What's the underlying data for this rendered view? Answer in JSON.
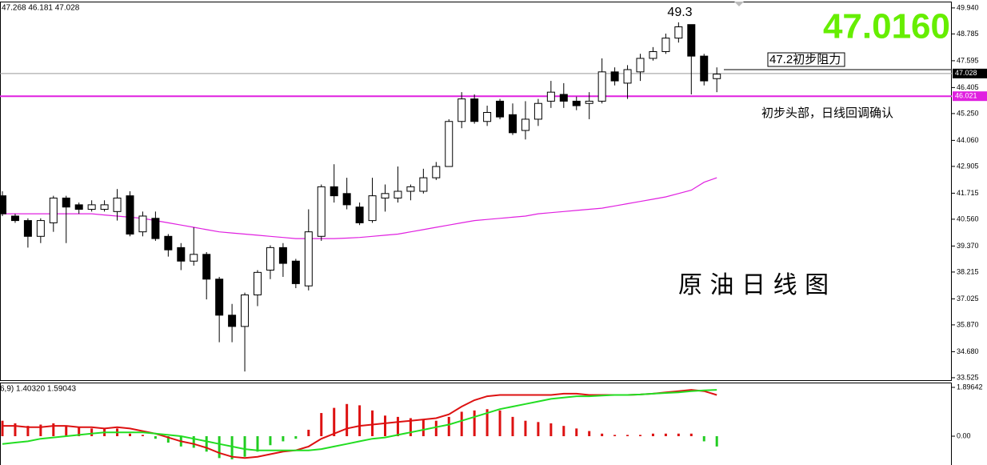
{
  "chart_data": [
    {
      "type": "candlestick",
      "title": "原 油 日 线 图",
      "header": "47.268 46.181 47.028",
      "annotations": {
        "high_label": "49.3",
        "big_price": "47.0160",
        "resistance": "47.2初步阻力",
        "note": "初步头部，日线回调确认"
      },
      "up_color": "#ffffff",
      "down_color": "#000000",
      "ma_color": "#e020e0",
      "big_price_color": "#66ee00",
      "open": [
        41.6,
        40.7,
        40.5,
        39.8,
        40.4,
        41.5,
        41.2,
        41.0,
        41.0,
        40.9,
        41.6,
        40.0,
        40.6,
        39.8,
        39.3,
        38.7,
        39.0,
        37.9,
        36.3,
        35.8,
        37.2,
        38.3,
        39.3,
        38.7,
        37.6,
        39.8,
        42.0,
        41.7,
        41.1,
        40.5,
        41.5,
        41.5,
        41.8,
        41.8,
        42.4,
        42.9,
        44.9,
        45.9,
        44.9,
        45.8,
        45.2,
        44.5,
        45.0,
        45.8,
        46.1,
        45.8,
        45.7,
        45.8,
        47.1,
        46.6,
        47.1,
        47.7,
        48.0,
        48.6,
        49.2,
        47.8,
        46.8
      ],
      "high": [
        41.8,
        40.8,
        40.6,
        40.6,
        41.6,
        41.6,
        41.3,
        41.4,
        41.4,
        41.9,
        41.8,
        40.9,
        40.9,
        39.9,
        39.5,
        40.2,
        39.1,
        38.0,
        36.8,
        37.3,
        38.3,
        39.4,
        39.5,
        38.8,
        41.0,
        42.1,
        43.0,
        42.4,
        41.3,
        42.4,
        42.1,
        42.9,
        42.1,
        42.8,
        43.1,
        45.0,
        46.2,
        46.1,
        45.6,
        45.9,
        45.7,
        45.8,
        45.9,
        46.7,
        46.6,
        46.0,
        46.2,
        47.7,
        47.3,
        47.4,
        47.9,
        48.2,
        48.8,
        49.3,
        49.2,
        47.9,
        47.3
      ],
      "low": [
        40.7,
        40.4,
        39.3,
        39.5,
        40.0,
        39.5,
        40.8,
        40.9,
        40.9,
        40.5,
        39.8,
        39.8,
        39.6,
        38.9,
        38.3,
        38.5,
        37.0,
        35.1,
        35.1,
        33.8,
        36.7,
        37.9,
        38.0,
        37.5,
        37.4,
        39.6,
        41.3,
        41.0,
        40.3,
        40.4,
        40.9,
        41.3,
        41.4,
        41.7,
        42.3,
        42.9,
        44.6,
        44.8,
        44.7,
        45.0,
        44.3,
        44.1,
        44.7,
        45.5,
        45.5,
        45.4,
        45.0,
        45.7,
        46.5,
        45.9,
        46.7,
        47.6,
        47.9,
        48.4,
        46.1,
        46.5,
        46.2
      ],
      "close": [
        40.8,
        40.5,
        39.8,
        40.5,
        41.5,
        41.1,
        41.0,
        41.2,
        41.2,
        41.5,
        39.9,
        40.7,
        39.7,
        39.2,
        38.7,
        39.0,
        37.9,
        36.3,
        35.8,
        37.2,
        38.2,
        39.3,
        38.6,
        37.7,
        40.0,
        42.0,
        41.6,
        41.2,
        40.4,
        41.6,
        41.7,
        41.8,
        42.0,
        42.4,
        42.9,
        44.9,
        45.9,
        44.9,
        45.3,
        45.1,
        44.4,
        45.0,
        45.7,
        46.2,
        45.8,
        45.6,
        45.8,
        47.1,
        46.7,
        47.2,
        47.7,
        48.0,
        48.6,
        49.1,
        47.8,
        46.7,
        47.0
      ],
      "ma": [
        40.8,
        40.8,
        40.8,
        40.8,
        40.8,
        40.8,
        40.8,
        40.8,
        40.75,
        40.7,
        40.65,
        40.6,
        40.5,
        40.4,
        40.3,
        40.2,
        40.1,
        40.0,
        39.95,
        39.9,
        39.85,
        39.8,
        39.75,
        39.7,
        39.7,
        39.7,
        39.7,
        39.72,
        39.75,
        39.8,
        39.85,
        39.9,
        40.0,
        40.1,
        40.2,
        40.3,
        40.4,
        40.5,
        40.55,
        40.6,
        40.65,
        40.7,
        40.8,
        40.85,
        40.9,
        40.95,
        41.0,
        41.05,
        41.15,
        41.25,
        41.35,
        41.45,
        41.55,
        41.7,
        41.85,
        42.2,
        42.4
      ],
      "hlines": [
        {
          "value": 47.028,
          "color": "#999999",
          "tag_color": "#000000"
        },
        {
          "value": 46.021,
          "color": "#e020e0",
          "tag_color": "#e020e0"
        }
      ],
      "resistance_value": 47.2,
      "ylim": [
        33.38,
        50.22
      ],
      "yticks": [
        {
          "value": 49.94,
          "label": "49.940"
        },
        48.785,
        47.595,
        46.405,
        {
          "value": 45.25,
          "label": "45.250"
        },
        {
          "value": 44.06,
          "label": "44.060"
        },
        42.905,
        41.715,
        {
          "value": 40.56,
          "label": "40.560"
        },
        {
          "value": 39.37,
          "label": "39.370"
        },
        38.215,
        37.025,
        {
          "value": 35.87,
          "label": "35.870"
        },
        {
          "value": 34.68,
          "label": "34.680"
        },
        33.525
      ]
    },
    {
      "type": "macd",
      "header": "6,9) 1.40320 1.59043",
      "histogram": [
        0.6,
        0.5,
        0.4,
        0.45,
        0.5,
        0.4,
        0.35,
        0.3,
        0.3,
        0.3,
        0.1,
        0.05,
        -0.1,
        -0.25,
        -0.4,
        -0.45,
        -0.6,
        -0.85,
        -0.9,
        -0.8,
        -0.6,
        -0.35,
        -0.2,
        -0.1,
        0.25,
        0.9,
        1.1,
        1.25,
        1.2,
        1.0,
        0.8,
        0.75,
        0.7,
        0.65,
        0.6,
        0.75,
        0.95,
        1.0,
        1.05,
        1.0,
        0.75,
        0.6,
        0.55,
        0.5,
        0.4,
        0.3,
        0.2,
        0.1,
        0.05,
        0.05,
        0.05,
        0.1,
        0.1,
        0.1,
        0.1,
        -0.2,
        -0.4
      ],
      "series": [
        {
          "name": "MACD",
          "color": "#dd1111",
          "values": [
            0.4,
            0.4,
            0.35,
            0.35,
            0.4,
            0.4,
            0.35,
            0.35,
            0.3,
            0.35,
            0.3,
            0.2,
            0.1,
            -0.05,
            -0.2,
            -0.3,
            -0.45,
            -0.65,
            -0.8,
            -0.85,
            -0.8,
            -0.7,
            -0.6,
            -0.55,
            -0.4,
            -0.1,
            0.1,
            0.3,
            0.4,
            0.45,
            0.5,
            0.55,
            0.6,
            0.65,
            0.7,
            0.85,
            1.15,
            1.4,
            1.55,
            1.6,
            1.6,
            1.6,
            1.6,
            1.6,
            1.65,
            1.65,
            1.6,
            1.6,
            1.6,
            1.6,
            1.62,
            1.65,
            1.7,
            1.75,
            1.8,
            1.75,
            1.6
          ]
        },
        {
          "name": "Signal",
          "color": "#22dd22",
          "values": [
            -0.3,
            -0.25,
            -0.2,
            -0.1,
            -0.05,
            0.0,
            0.05,
            0.1,
            0.15,
            0.15,
            0.15,
            0.15,
            0.1,
            0.05,
            0.0,
            -0.1,
            -0.2,
            -0.3,
            -0.4,
            -0.5,
            -0.55,
            -0.55,
            -0.55,
            -0.55,
            -0.55,
            -0.5,
            -0.4,
            -0.3,
            -0.2,
            -0.1,
            -0.05,
            0.05,
            0.15,
            0.25,
            0.35,
            0.45,
            0.6,
            0.75,
            0.9,
            1.05,
            1.15,
            1.25,
            1.35,
            1.45,
            1.5,
            1.55,
            1.55,
            1.58,
            1.6,
            1.6,
            1.62,
            1.65,
            1.68,
            1.7,
            1.75,
            1.78,
            1.8
          ]
        }
      ],
      "pos_color": "#dd1111",
      "neg_color": "#22cc22",
      "ylim": [
        -1.119,
        2.083
      ],
      "yticks": [
        1.89642,
        {
          "value": 0,
          "label": "0.00"
        }
      ]
    }
  ]
}
